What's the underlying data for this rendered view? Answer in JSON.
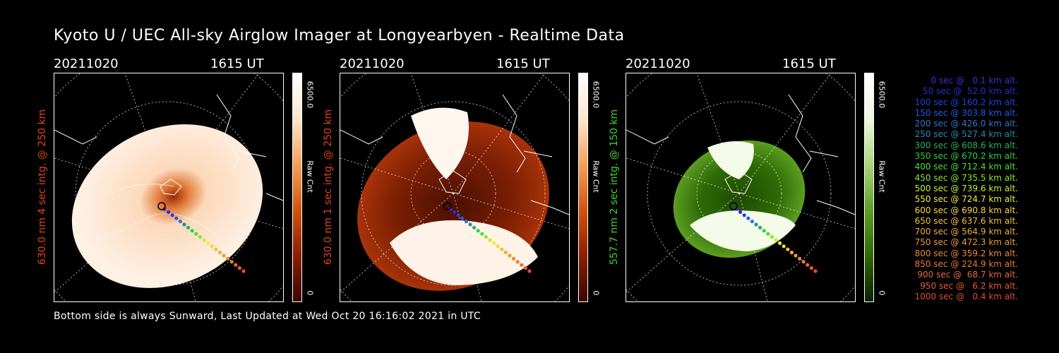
{
  "title": "Kyoto U / UEC All-sky Airglow Imager at Longyearbyen - Realtime Data",
  "footer": "Bottom side is always Sunward, Last Updated at Wed Oct 20 16:16:02 2021 in UTC",
  "panels": [
    {
      "date": "20211020",
      "time": "1615 UT",
      "side_label": "630.0 nm 4 sec intg. @ 250 km",
      "side_color": "#e0421e",
      "cbar_max": "6500.0",
      "cbar_unit": "Raw Cnt",
      "cbar_min": "0",
      "cmap": [
        "#ffffff",
        "#fde6cf",
        "#f4a05a",
        "#d2530d",
        "#8a1e03",
        "#3a0500"
      ]
    },
    {
      "date": "20211020",
      "time": "1615 UT",
      "side_label": "630.0 nm 1 sec intg. @ 250 km",
      "side_color": "#e0421e",
      "cbar_max": "6500.0",
      "cbar_unit": "Raw Cnt",
      "cbar_min": "0",
      "cmap": [
        "#ffffff",
        "#fde6cf",
        "#f4a05a",
        "#d2530d",
        "#8a1e03",
        "#3a0500"
      ]
    },
    {
      "date": "20211020",
      "time": "1615 UT",
      "side_label": "557.7 nm 2 sec intg. @ 150 km",
      "side_color": "#3ed42e",
      "cbar_max": "6500.0",
      "cbar_unit": "Raw Cnt",
      "cbar_min": "0",
      "cmap": [
        "#ffffff",
        "#eef6e0",
        "#a9d47a",
        "#5c9e22",
        "#2f6a06",
        "#0a2000"
      ]
    }
  ],
  "legend": [
    {
      "text": "0 sec @   0.1 km alt.",
      "color": "#4a2bd8"
    },
    {
      "text": "50 sec @  52.0 km alt.",
      "color": "#2a2bd8"
    },
    {
      "text": "100 sec @ 160.2 km alt.",
      "color": "#2040ea"
    },
    {
      "text": "150 sec @ 303.8 km alt.",
      "color": "#2558e8"
    },
    {
      "text": "200 sec @ 426.0 km alt.",
      "color": "#2c78cc"
    },
    {
      "text": "250 sec @ 527.4 km alt.",
      "color": "#2a8aa8"
    },
    {
      "text": "300 sec @ 608.6 km alt.",
      "color": "#27b060"
    },
    {
      "text": "350 sec @ 670.2 km alt.",
      "color": "#2fd03a"
    },
    {
      "text": "400 sec @ 712.4 km alt.",
      "color": "#48e035"
    },
    {
      "text": "450 sec @ 735.5 km alt.",
      "color": "#8ce830"
    },
    {
      "text": "500 sec @ 739.6 km alt.",
      "color": "#c6ee30"
    },
    {
      "text": "550 sec @ 724.7 km alt.",
      "color": "#eef036"
    },
    {
      "text": "600 sec @ 690.8 km alt.",
      "color": "#f4dc3a"
    },
    {
      "text": "650 sec @ 637.6 km alt.",
      "color": "#f2c23c"
    },
    {
      "text": "700 sec @ 564.9 km alt.",
      "color": "#f2ac3a"
    },
    {
      "text": "750 sec @ 472.3 km alt.",
      "color": "#ee9a38"
    },
    {
      "text": "800 sec @ 359.2 km alt.",
      "color": "#ec8a36"
    },
    {
      "text": "850 sec @ 224.9 km alt.",
      "color": "#ea7a36"
    },
    {
      "text": "900 sec @  68.7 km alt.",
      "color": "#e86a36"
    },
    {
      "text": "950 sec @   6.2 km alt.",
      "color": "#e65a36"
    },
    {
      "text": "1000 sec @   0.4 km alt.",
      "color": "#e44a34"
    }
  ]
}
